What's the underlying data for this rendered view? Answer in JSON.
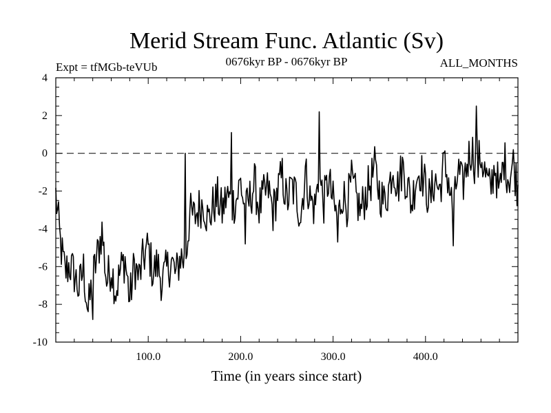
{
  "header": {
    "title": "Merid Stream Func. Atlantic (Sv)",
    "experiment": "Expt = tfMGb-teVUb",
    "period": "0676kyr BP - 0676kyr BP",
    "season": "ALL_MONTHS"
  },
  "chart_data": {
    "type": "line",
    "title": "Merid Stream Func. Atlantic (Sv)",
    "xlabel": "Time (in years since start)",
    "ylabel": "",
    "xlim": [
      0,
      500
    ],
    "ylim": [
      -10,
      4
    ],
    "x_tick_labels": [
      "100.0",
      "200.0",
      "300.0",
      "400.0"
    ],
    "x_tick_values": [
      100,
      200,
      300,
      400
    ],
    "y_tick_labels": [
      "4",
      "2",
      "0",
      "-2",
      "-4",
      "-6",
      "-8",
      "-10"
    ],
    "y_tick_values": [
      4,
      2,
      0,
      -2,
      -4,
      -6,
      -8,
      -10
    ],
    "reference_line": {
      "y": 0,
      "style": "dashed"
    },
    "series": [
      {
        "name": "Merid Stream Func. Atlantic",
        "x": [
          0,
          5,
          10,
          15,
          20,
          25,
          30,
          35,
          40,
          45,
          50,
          55,
          60,
          65,
          70,
          75,
          80,
          85,
          90,
          95,
          100,
          105,
          110,
          115,
          120,
          125,
          130,
          135,
          140,
          145,
          150,
          155,
          160,
          165,
          170,
          175,
          180,
          185,
          190,
          195,
          200,
          205,
          210,
          215,
          220,
          225,
          230,
          235,
          240,
          245,
          250,
          255,
          260,
          265,
          270,
          275,
          280,
          285,
          290,
          295,
          300,
          305,
          310,
          315,
          320,
          325,
          330,
          335,
          340,
          345,
          350,
          355,
          360,
          365,
          370,
          375,
          380,
          385,
          390,
          395,
          400,
          405,
          410,
          415,
          420,
          425,
          430,
          435,
          440,
          445,
          450,
          455,
          460,
          465,
          470,
          475,
          480,
          485,
          490,
          495,
          500
        ],
        "values": [
          -2.2,
          -4.8,
          -6.3,
          -5.9,
          -6.4,
          -7.2,
          -6.1,
          -8.4,
          -6.6,
          -5.4,
          -4.1,
          -6.8,
          -6.0,
          -7.3,
          -6.2,
          -5.6,
          -7.8,
          -5.9,
          -6.6,
          -5.5,
          -5.0,
          -6.3,
          -5.9,
          -6.8,
          -6.2,
          -5.7,
          -6.5,
          -5.4,
          -5.8,
          -3.2,
          -3.4,
          -2.9,
          -2.6,
          -3.6,
          -2.8,
          -2.4,
          -3.1,
          -2.2,
          -2.7,
          -2.5,
          -1.5,
          -3.2,
          -2.4,
          -1.6,
          -2.9,
          -2.3,
          -1.9,
          -3.1,
          -2.0,
          -1.2,
          -2.6,
          -1.8,
          -2.2,
          -3.3,
          -1.0,
          -2.4,
          -2.9,
          -1.3,
          -2.6,
          -1.4,
          -2.6,
          -3.6,
          -2.1,
          -2.7,
          -1.5,
          -2.4,
          -3.1,
          -2.2,
          -1.6,
          -0.8,
          -2.0,
          -2.6,
          -1.9,
          -0.6,
          -1.8,
          -0.7,
          -1.6,
          -2.7,
          -1.2,
          -0.9,
          -1.8,
          -2.5,
          -1.3,
          -2.0,
          -0.6,
          -1.4,
          -3.3,
          -0.9,
          -1.8,
          -0.5,
          0.3,
          -0.9,
          -0.1,
          -1.2,
          -2.0,
          -0.6,
          -2.2,
          -0.3,
          -1.3,
          -0.5,
          -1.9
        ]
      }
    ],
    "spikes": [
      {
        "x": 140,
        "y": 0.0
      },
      {
        "x": 190,
        "y": 1.1
      },
      {
        "x": 285,
        "y": 2.2
      },
      {
        "x": 455,
        "y": 2.5
      },
      {
        "x": 40,
        "y": -8.8
      },
      {
        "x": 430,
        "y": -4.9
      },
      {
        "x": 305,
        "y": -4.7
      },
      {
        "x": 205,
        "y": -4.8
      }
    ]
  }
}
